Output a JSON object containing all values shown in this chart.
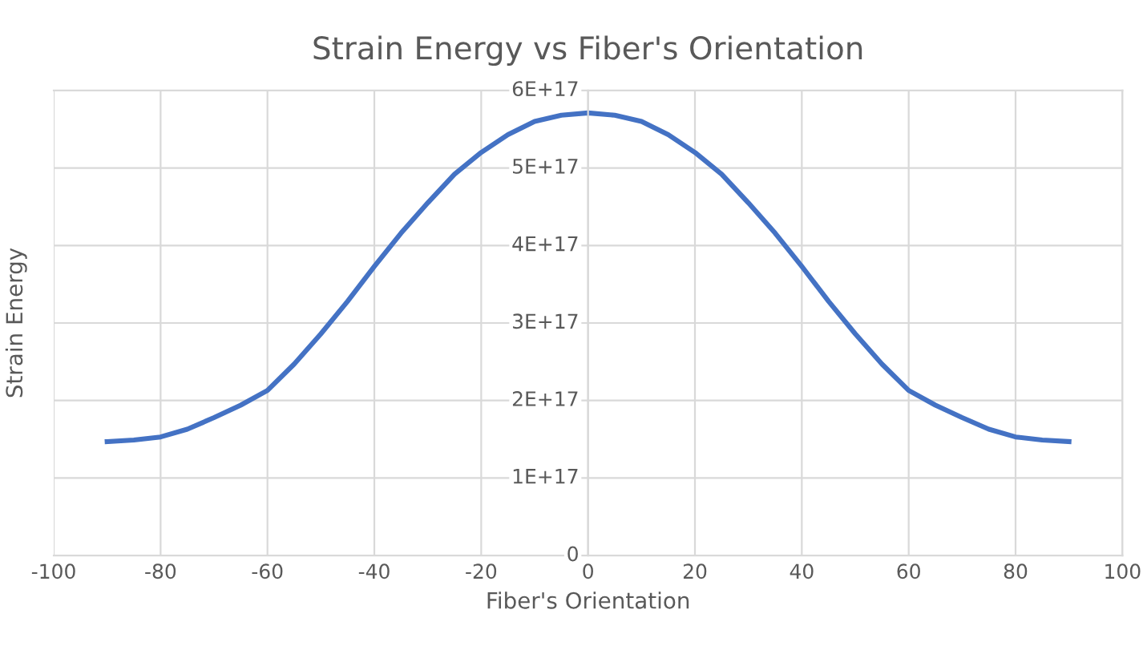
{
  "chart_data": {
    "type": "line",
    "title": "Strain Energy vs Fiber's Orientation",
    "xlabel": "Fiber's Orientation",
    "ylabel": "Strain Energy",
    "x": [
      -90,
      -85,
      -80,
      -75,
      -70,
      -65,
      -60,
      -55,
      -50,
      -45,
      -40,
      -35,
      -30,
      -25,
      -20,
      -15,
      -10,
      -5,
      0,
      5,
      10,
      15,
      20,
      25,
      30,
      35,
      40,
      45,
      50,
      55,
      60,
      65,
      70,
      75,
      80,
      85,
      90
    ],
    "series": [
      {
        "color": "#4472c4",
        "values": [
          1.47e+17,
          1.49e+17,
          1.53e+17,
          1.63e+17,
          1.78e+17,
          1.94e+17,
          2.13e+17,
          2.47e+17,
          2.86e+17,
          3.28e+17,
          3.73e+17,
          4.16e+17,
          4.55e+17,
          4.92e+17,
          5.2e+17,
          5.43e+17,
          5.6e+17,
          5.68e+17,
          5.71e+17,
          5.68e+17,
          5.6e+17,
          5.43e+17,
          5.2e+17,
          4.92e+17,
          4.55e+17,
          4.16e+17,
          3.73e+17,
          3.28e+17,
          2.86e+17,
          2.47e+17,
          2.13e+17,
          1.94e+17,
          1.78e+17,
          1.63e+17,
          1.53e+17,
          1.49e+17,
          1.47e+17
        ]
      }
    ],
    "xlim": [
      -100,
      100
    ],
    "xticks": [
      -100,
      -80,
      -60,
      -40,
      -20,
      0,
      20,
      40,
      60,
      80,
      100
    ],
    "ylim": [
      0,
      6e+17
    ],
    "yticks": [
      {
        "value": 0,
        "label": "0"
      },
      {
        "value": 1e+17,
        "label": "1E+17"
      },
      {
        "value": 2e+17,
        "label": "2E+17"
      },
      {
        "value": 3e+17,
        "label": "3E+17"
      },
      {
        "value": 4e+17,
        "label": "4E+17"
      },
      {
        "value": 5e+17,
        "label": "5E+17"
      },
      {
        "value": 6e+17,
        "label": "6E+17"
      }
    ],
    "grid": true,
    "marker": "none",
    "line_style": "solid",
    "legend": false
  }
}
